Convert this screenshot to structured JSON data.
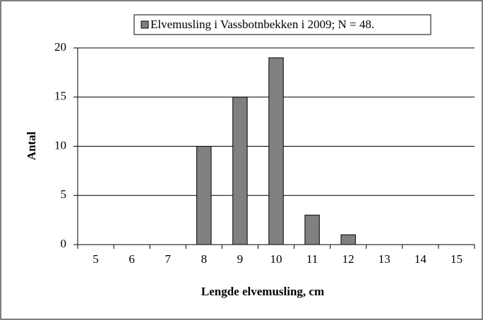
{
  "chart_data": {
    "type": "bar",
    "x_label": "Lengde elvemusling, cm",
    "y_label": "Antal",
    "categories": [
      "5",
      "6",
      "7",
      "8",
      "9",
      "10",
      "11",
      "12",
      "13",
      "14",
      "15"
    ],
    "series": [
      {
        "name": "Elvemusling i Vassbotnbekken i 2009; N = 48.",
        "color": "#808080",
        "values": [
          0,
          0,
          0,
          10,
          15,
          19,
          3,
          1,
          0,
          0,
          0
        ]
      }
    ],
    "ylim": [
      0,
      20
    ],
    "yticks": [
      0,
      5,
      10,
      15,
      20
    ],
    "grid": true,
    "legend": "top"
  }
}
